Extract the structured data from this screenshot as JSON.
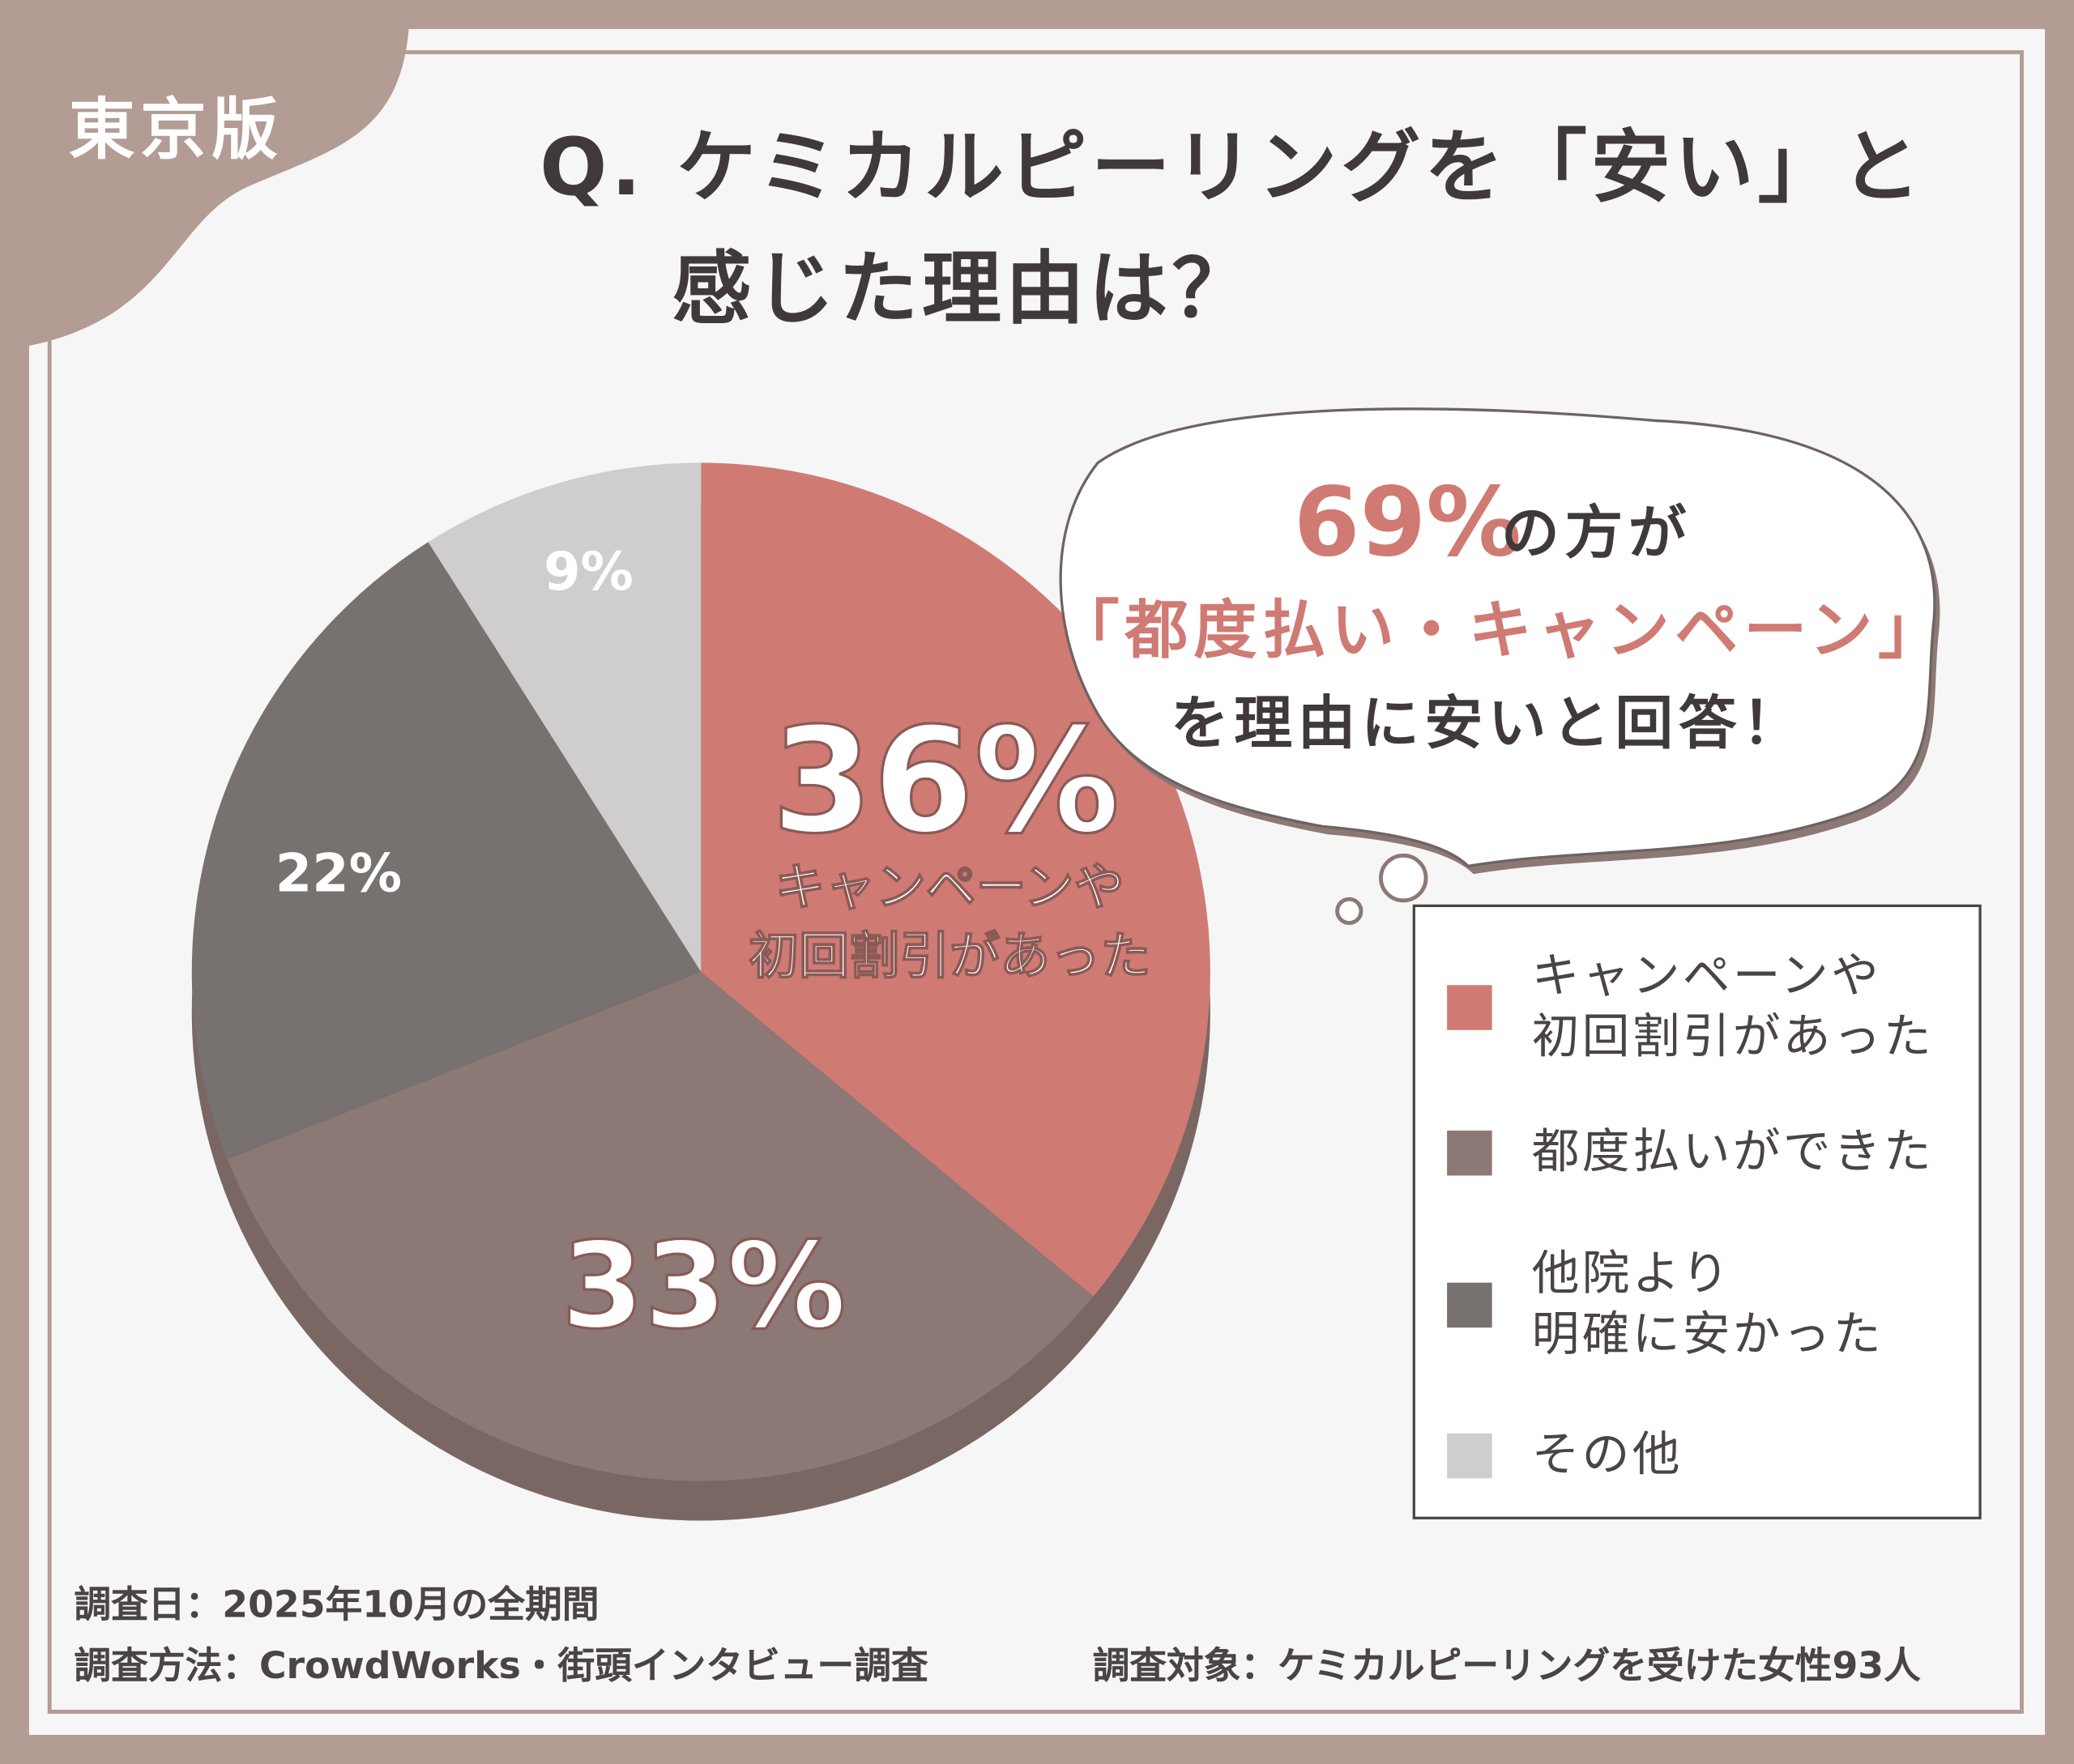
{
  "badge": "東京版",
  "title_line1": "Q. ケミカルピーリングを「安い」と",
  "title_line2": "感じた理由は？",
  "callout": {
    "highlight_pct": "69%",
    "line1_rest": "の方が",
    "line2": "「都度払い・キャンペーン」",
    "line3": "を理由に安いと回答！"
  },
  "colors": {
    "frame": "#b39c94",
    "accent": "#d07a74",
    "brown": "#8c7874",
    "dark_grey": "#777170",
    "light_grey": "#cfcdcd"
  },
  "chart_data": {
    "type": "pie",
    "start": "top, clockwise",
    "slices": [
      {
        "label": "キャンペーンや\n初回割引があった",
        "value": 36,
        "display": "36%",
        "inline_label": "キャンペーンや初回割引があった",
        "color": "#d07a74"
      },
      {
        "label": "都度払いができた",
        "value": 33,
        "display": "33%",
        "color": "#8c7874"
      },
      {
        "label": "他院より\n明確に安かった",
        "value": 22,
        "display": "22%",
        "color": "#777170"
      },
      {
        "label": "その他",
        "value": 9,
        "display": "9%",
        "color": "#cfcdcd"
      }
    ],
    "legend_placement": "right"
  },
  "footer": {
    "date": "調査日：2025年10月の全期間",
    "method": "調査方法：CrowdWorks・街頭インタビュー調査",
    "target": "調査対象：ケミカルピーリングを受けた女性93人"
  }
}
